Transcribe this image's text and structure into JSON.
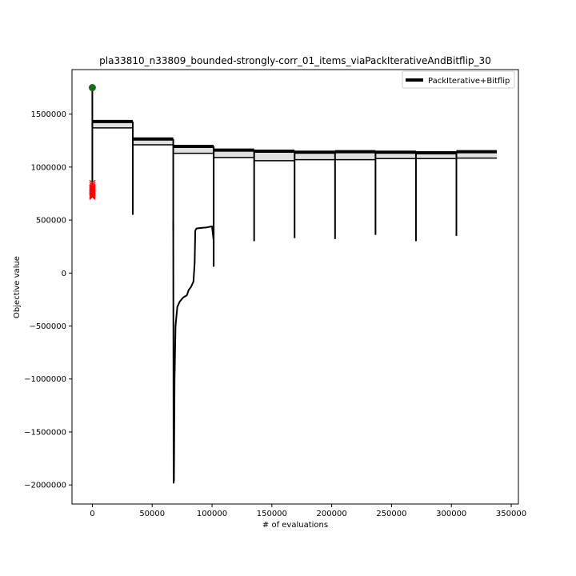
{
  "chart_data": {
    "type": "line",
    "title": "pla33810_n33809_bounded-strongly-corr_01_items_viaPackIterativeAndBitflip_30",
    "xlabel": "# of evaluations",
    "ylabel": "Objective value",
    "xlim": [
      -17000,
      356000
    ],
    "ylim": [
      -2180000,
      1920000
    ],
    "xticks": [
      0,
      50000,
      100000,
      150000,
      200000,
      250000,
      300000,
      350000
    ],
    "xtick_labels": [
      "0",
      "50000",
      "100000",
      "150000",
      "200000",
      "250000",
      "300000",
      "350000"
    ],
    "yticks": [
      1500000,
      1000000,
      500000,
      0,
      -500000,
      -1000000,
      -1500000,
      -2000000
    ],
    "ytick_labels": [
      "1500000",
      "1000000",
      "500000",
      "0",
      "−500000",
      "−1000000",
      "−1500000",
      "−2000000"
    ],
    "grid": false,
    "legend": {
      "placement": "top-right",
      "entries": [
        {
          "label": "PackIterative+Bitflip",
          "color": "#000000"
        }
      ]
    },
    "colors": {
      "line": "#000000",
      "start_marker": "#1a6b1a",
      "end_markers": "#ff0000"
    },
    "band_segments": [
      {
        "x": [
          0,
          33800
        ],
        "y_top": 1430000,
        "y_bottom": 1370000
      },
      {
        "x": [
          33800,
          67600
        ],
        "y_top": 1265000,
        "y_bottom": 1210000
      },
      {
        "x": [
          67600,
          101400
        ],
        "y_top": 1195000,
        "y_bottom": 1130000
      },
      {
        "x": [
          101400,
          135200
        ],
        "y_top": 1160000,
        "y_bottom": 1090000
      },
      {
        "x": [
          135200,
          169000
        ],
        "y_top": 1150000,
        "y_bottom": 1060000
      },
      {
        "x": [
          169000,
          202800
        ],
        "y_top": 1140000,
        "y_bottom": 1070000
      },
      {
        "x": [
          202800,
          236600
        ],
        "y_top": 1145000,
        "y_bottom": 1070000
      },
      {
        "x": [
          236600,
          270400
        ],
        "y_top": 1140000,
        "y_bottom": 1080000
      },
      {
        "x": [
          270400,
          304200
        ],
        "y_top": 1135000,
        "y_bottom": 1080000
      },
      {
        "x": [
          304200,
          338000
        ],
        "y_top": 1145000,
        "y_bottom": 1085000
      }
    ],
    "restart_drops": [
      {
        "x": 0,
        "y_top": 1750000,
        "y_bottom": 730000
      },
      {
        "x": 33800,
        "y_top": 1430000,
        "y_bottom": 550000
      },
      {
        "x": 67600,
        "y_top": 1265000,
        "y_bottom": 400000
      },
      {
        "x": 101400,
        "y_top": 1195000,
        "y_bottom": 60000
      },
      {
        "x": 135200,
        "y_top": 1160000,
        "y_bottom": 300000
      },
      {
        "x": 169000,
        "y_top": 1150000,
        "y_bottom": 330000
      },
      {
        "x": 202800,
        "y_top": 1140000,
        "y_bottom": 320000
      },
      {
        "x": 236600,
        "y_top": 1145000,
        "y_bottom": 360000
      },
      {
        "x": 270400,
        "y_top": 1140000,
        "y_bottom": 300000
      },
      {
        "x": 304200,
        "y_top": 1135000,
        "y_bottom": 350000
      }
    ],
    "outlier_run": {
      "x": [
        67600,
        67900,
        68200,
        68700,
        69500,
        71000,
        73000,
        76000,
        79000,
        80500,
        82500,
        84500,
        85500,
        86000,
        87000,
        90000,
        95000,
        100000,
        101400
      ],
      "y": [
        500000,
        -1980000,
        -1950000,
        -1000000,
        -500000,
        -320000,
        -270000,
        -230000,
        -210000,
        -160000,
        -130000,
        -80000,
        100000,
        400000,
        420000,
        425000,
        430000,
        440000,
        300000
      ]
    },
    "start_point": {
      "x": 0,
      "y": 1750000
    },
    "end_points": {
      "x": [
        0,
        0,
        0,
        0,
        0,
        0,
        0,
        0,
        0,
        0,
        0,
        0
      ],
      "y": [
        850000,
        830000,
        810000,
        800000,
        790000,
        780000,
        770000,
        760000,
        750000,
        740000,
        730000,
        720000
      ]
    }
  }
}
